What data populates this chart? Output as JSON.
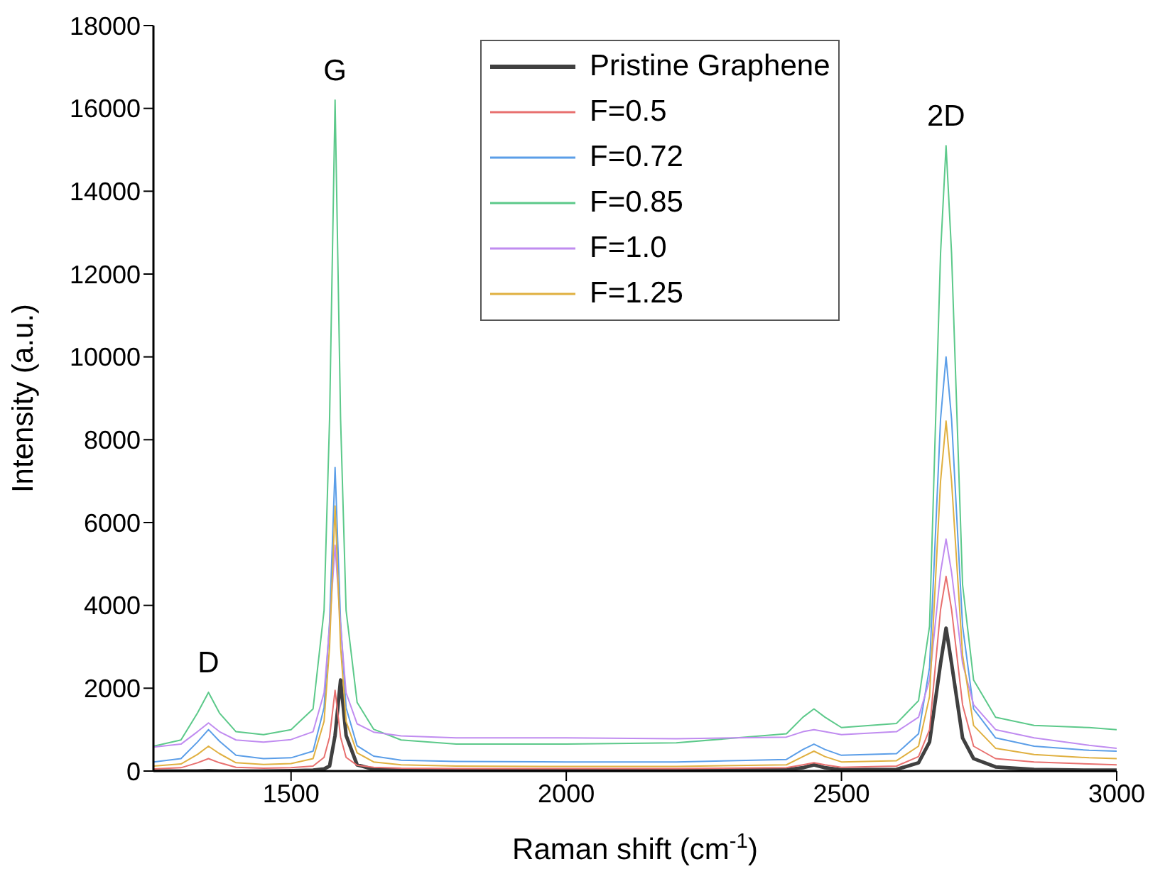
{
  "chart_data": {
    "type": "line",
    "xlabel": "Raman shift (cm$^{-1}$)",
    "ylabel": "Intensity (a.u.)",
    "x": [
      1250,
      1300,
      1330,
      1350,
      1370,
      1400,
      1450,
      1500,
      1540,
      1560,
      1570,
      1580,
      1590,
      1600,
      1620,
      1650,
      1700,
      1800,
      2000,
      2200,
      2400,
      2430,
      2450,
      2470,
      2500,
      2600,
      2640,
      2660,
      2680,
      2690,
      2700,
      2720,
      2740,
      2780,
      2850,
      2950,
      3000
    ],
    "xlim": [
      1250,
      3000
    ],
    "xticks": [
      1500,
      2000,
      2500,
      3000
    ],
    "ylim": [
      0,
      18000
    ],
    "yticks": [
      0,
      2000,
      4000,
      6000,
      8000,
      10000,
      12000,
      14000,
      16000,
      18000
    ],
    "grid": false,
    "legend": "top",
    "marker": "none",
    "line_style": "solid",
    "annotations": [
      {
        "text": "D",
        "x": 1350,
        "y": 1900
      },
      {
        "text": "G",
        "x": 1580,
        "y": 16200
      },
      {
        "text": "2D",
        "x": 2690,
        "y": 15100
      }
    ],
    "series": [
      {
        "name": "Pristine Graphene",
        "color": "#404040",
        "values": [
          0,
          0,
          0,
          10,
          0,
          0,
          0,
          10,
          20,
          50,
          120,
          860,
          2200,
          860,
          150,
          40,
          20,
          20,
          20,
          20,
          30,
          80,
          150,
          80,
          30,
          40,
          200,
          700,
          2600,
          3450,
          2600,
          800,
          300,
          100,
          40,
          20,
          20
        ]
      },
      {
        "name": "F=0.5",
        "color": "#e8706f",
        "values": [
          50,
          80,
          200,
          300,
          200,
          90,
          70,
          80,
          120,
          330,
          820,
          1950,
          820,
          330,
          140,
          90,
          70,
          60,
          60,
          60,
          80,
          150,
          200,
          150,
          90,
          120,
          350,
          1000,
          3900,
          4700,
          3900,
          1600,
          600,
          300,
          220,
          170,
          150
        ]
      },
      {
        "name": "F=0.72",
        "color": "#5b9ee8",
        "values": [
          220,
          300,
          700,
          1000,
          720,
          380,
          300,
          320,
          480,
          1530,
          3600,
          7330,
          3600,
          1530,
          610,
          360,
          260,
          230,
          220,
          220,
          280,
          520,
          650,
          520,
          380,
          420,
          900,
          2500,
          8500,
          10000,
          8500,
          3500,
          1500,
          800,
          600,
          500,
          480
        ]
      },
      {
        "name": "F=0.85",
        "color": "#5cc98a",
        "values": [
          600,
          750,
          1400,
          1900,
          1400,
          950,
          880,
          1000,
          1500,
          3880,
          8500,
          16200,
          8500,
          3880,
          1660,
          1010,
          750,
          650,
          650,
          680,
          900,
          1300,
          1500,
          1300,
          1050,
          1150,
          1700,
          3500,
          12500,
          15100,
          12500,
          4500,
          2200,
          1300,
          1100,
          1050,
          1000
        ]
      },
      {
        "name": "F=1.0",
        "color": "#c08cf0",
        "values": [
          580,
          650,
          950,
          1160,
          950,
          750,
          700,
          760,
          950,
          1890,
          3500,
          5450,
          3500,
          1890,
          1140,
          940,
          850,
          800,
          800,
          780,
          820,
          950,
          1000,
          950,
          880,
          950,
          1300,
          2200,
          4800,
          5600,
          4800,
          2600,
          1600,
          1000,
          800,
          620,
          550
        ]
      },
      {
        "name": "F=1.25",
        "color": "#e0b040",
        "values": [
          120,
          170,
          400,
          600,
          420,
          200,
          160,
          180,
          300,
          1200,
          3000,
          6400,
          3000,
          1200,
          440,
          220,
          150,
          120,
          110,
          110,
          150,
          350,
          480,
          350,
          220,
          250,
          600,
          1800,
          7000,
          8450,
          7000,
          2800,
          1100,
          550,
          400,
          320,
          300
        ]
      }
    ]
  }
}
